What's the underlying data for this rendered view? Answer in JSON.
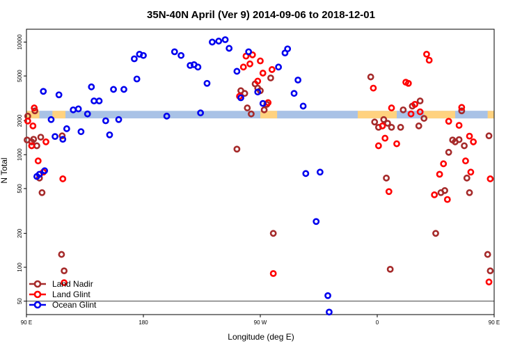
{
  "chart_data": {
    "type": "scatter",
    "title": "35N-40N April (Ver 9)   2014-09-06 to 2018-12-01",
    "xlabel": "Longitude (deg E)",
    "ylabel": "N Total",
    "y_scale": "log",
    "xlim": [
      90,
      450
    ],
    "ylim": [
      38,
      13000
    ],
    "x_ticks": [
      {
        "value": 90,
        "label": "90 E"
      },
      {
        "value": 180,
        "label": "180"
      },
      {
        "value": 270,
        "label": "90 W"
      },
      {
        "value": 360,
        "label": "0"
      },
      {
        "value": 450,
        "label": "90 E"
      },
      {
        "value": 540,
        "label": "180"
      }
    ],
    "y_ticks": [
      50,
      100,
      200,
      500,
      1000,
      2000,
      5000,
      10000
    ],
    "hline": 50,
    "band": {
      "y_low": 2100,
      "y_high": 2450,
      "colors": [
        "#ffd27f",
        "#a9c2e6"
      ]
    },
    "legend": {
      "position": "bottom-left"
    },
    "series": [
      {
        "name": "Land Nadir",
        "color": "#a52a2a",
        "points": [
          [
            90.5,
            1350
          ],
          [
            91,
            2200
          ],
          [
            94,
            1300
          ],
          [
            95.5,
            1370
          ],
          [
            96.5,
            2450
          ],
          [
            98,
            1200
          ],
          [
            100,
            620
          ],
          [
            101,
            1430
          ],
          [
            102,
            460
          ],
          [
            117,
            130
          ],
          [
            117.5,
            1470
          ],
          [
            119,
            93
          ],
          [
            252,
            1120
          ],
          [
            255,
            3700
          ],
          [
            258,
            3500
          ],
          [
            260,
            2600
          ],
          [
            263,
            2300
          ],
          [
            266,
            4250
          ],
          [
            268,
            3900
          ],
          [
            270,
            3700
          ],
          [
            273,
            2500
          ],
          [
            275,
            2800
          ],
          [
            278,
            4800
          ],
          [
            280,
            200
          ],
          [
            355,
            4900
          ],
          [
            358,
            1950
          ],
          [
            361,
            1750
          ],
          [
            365,
            2050
          ],
          [
            367,
            620
          ],
          [
            368,
            1900
          ],
          [
            370,
            96
          ],
          [
            371,
            1750
          ],
          [
            378,
            1750
          ],
          [
            380,
            2500
          ],
          [
            387,
            2700
          ],
          [
            392,
            1800
          ],
          [
            393,
            3000
          ],
          [
            396,
            2100
          ],
          [
            405,
            200
          ],
          [
            409,
            460
          ],
          [
            412,
            480
          ],
          [
            415,
            1050
          ],
          [
            418,
            1350
          ],
          [
            420,
            1300
          ],
          [
            423,
            1360
          ],
          [
            425,
            2450
          ],
          [
            427,
            1200
          ],
          [
            429,
            620
          ],
          [
            431,
            460
          ],
          [
            445,
            130
          ],
          [
            446,
            1470
          ],
          [
            447,
            93
          ]
        ]
      },
      {
        "name": "Land Glint",
        "color": "#ff0000",
        "points": [
          [
            91,
            1990
          ],
          [
            94,
            1200
          ],
          [
            95,
            1800
          ],
          [
            96,
            2600
          ],
          [
            99,
            880
          ],
          [
            103,
            700
          ],
          [
            105,
            1300
          ],
          [
            118,
            610
          ],
          [
            119,
            73
          ],
          [
            254,
            3300
          ],
          [
            257,
            6000
          ],
          [
            259,
            7500
          ],
          [
            262,
            6400
          ],
          [
            264,
            7700
          ],
          [
            268,
            4500
          ],
          [
            270,
            6800
          ],
          [
            272,
            5300
          ],
          [
            276,
            2900
          ],
          [
            279,
            5700
          ],
          [
            280,
            88
          ],
          [
            357,
            3900
          ],
          [
            361,
            1200
          ],
          [
            364,
            1800
          ],
          [
            366,
            1400
          ],
          [
            369,
            470
          ],
          [
            371,
            2600
          ],
          [
            375,
            1250
          ],
          [
            382,
            4400
          ],
          [
            384,
            4300
          ],
          [
            386,
            2300
          ],
          [
            389,
            2800
          ],
          [
            393,
            2400
          ],
          [
            398,
            7800
          ],
          [
            400,
            6900
          ],
          [
            404,
            440
          ],
          [
            408,
            670
          ],
          [
            411,
            830
          ],
          [
            414,
            400
          ],
          [
            415,
            1980
          ],
          [
            423,
            1820
          ],
          [
            425,
            2630
          ],
          [
            428,
            880
          ],
          [
            431,
            1460
          ],
          [
            432,
            700
          ],
          [
            434,
            1300
          ],
          [
            446,
            74
          ],
          [
            447,
            610
          ]
        ]
      },
      {
        "name": "Ocean Glint",
        "color": "#0000ee",
        "points": [
          [
            98,
            640
          ],
          [
            100,
            670
          ],
          [
            103,
            3650
          ],
          [
            104,
            720
          ],
          [
            109,
            2050
          ],
          [
            112,
            1450
          ],
          [
            115,
            3400
          ],
          [
            118,
            1370
          ],
          [
            121,
            1700
          ],
          [
            126,
            2500
          ],
          [
            130,
            2550
          ],
          [
            132,
            1600
          ],
          [
            137,
            2300
          ],
          [
            140,
            4000
          ],
          [
            142,
            3000
          ],
          [
            146,
            3000
          ],
          [
            151,
            2000
          ],
          [
            154,
            1500
          ],
          [
            157,
            3800
          ],
          [
            161,
            2050
          ],
          [
            165,
            3800
          ],
          [
            173,
            7100
          ],
          [
            175,
            4700
          ],
          [
            177,
            7800
          ],
          [
            180,
            7600
          ],
          [
            198,
            2200
          ],
          [
            204,
            8200
          ],
          [
            209,
            7600
          ],
          [
            216,
            6200
          ],
          [
            219,
            6300
          ],
          [
            222,
            6000
          ],
          [
            224,
            2350
          ],
          [
            229,
            4300
          ],
          [
            233,
            10000
          ],
          [
            238,
            10200
          ],
          [
            243,
            10500
          ],
          [
            246,
            8800
          ],
          [
            252,
            5500
          ],
          [
            255,
            3200
          ],
          [
            261,
            8200
          ],
          [
            268,
            3600
          ],
          [
            272,
            2850
          ],
          [
            284,
            6000
          ],
          [
            289,
            8000
          ],
          [
            291,
            8700
          ],
          [
            296,
            3500
          ],
          [
            299,
            4600
          ],
          [
            303,
            2700
          ],
          [
            305,
            680
          ],
          [
            313,
            255
          ],
          [
            316,
            700
          ],
          [
            322,
            56
          ],
          [
            323,
            40
          ]
        ]
      }
    ]
  }
}
